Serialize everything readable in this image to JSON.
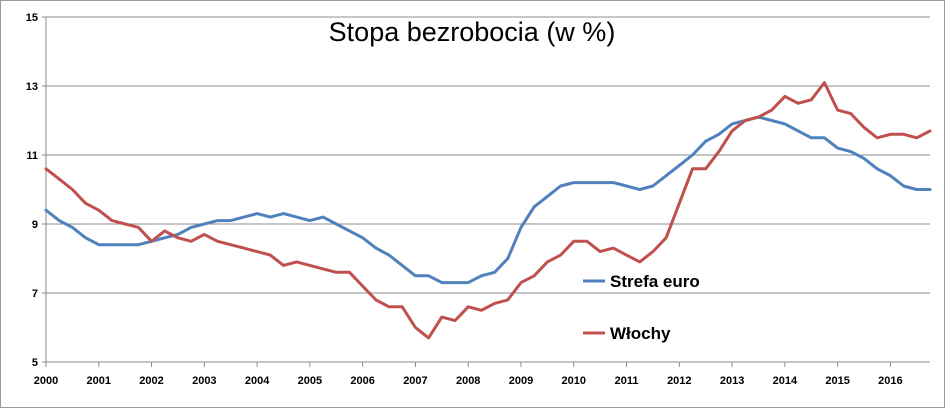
{
  "chart_data": {
    "type": "line",
    "title": "Stopa bezrobocia (w %)",
    "xlabel": "",
    "ylabel": "",
    "xlim": [
      2000,
      2016.75
    ],
    "ylim": [
      5,
      15
    ],
    "yticks": [
      5,
      7,
      9,
      11,
      13,
      15
    ],
    "xticks": [
      "2000",
      "2001",
      "2002",
      "2003",
      "2004",
      "2005",
      "2006",
      "2007",
      "2008",
      "2009",
      "2010",
      "2011",
      "2012",
      "2013",
      "2014",
      "2015",
      "2016"
    ],
    "grid": true,
    "legend_placement": "right-lower",
    "series": [
      {
        "name": "Strefa euro",
        "color": "#4F81BD",
        "x": [
          2000,
          2000.25,
          2000.5,
          2000.75,
          2001,
          2001.25,
          2001.5,
          2001.75,
          2002,
          2002.25,
          2002.5,
          2002.75,
          2003,
          2003.25,
          2003.5,
          2003.75,
          2004,
          2004.25,
          2004.5,
          2004.75,
          2005,
          2005.25,
          2005.5,
          2005.75,
          2006,
          2006.25,
          2006.5,
          2006.75,
          2007,
          2007.25,
          2007.5,
          2007.75,
          2008,
          2008.25,
          2008.5,
          2008.75,
          2009,
          2009.25,
          2009.5,
          2009.75,
          2010,
          2010.25,
          2010.5,
          2010.75,
          2011,
          2011.25,
          2011.5,
          2011.75,
          2012,
          2012.25,
          2012.5,
          2012.75,
          2013,
          2013.25,
          2013.5,
          2013.75,
          2014,
          2014.25,
          2014.5,
          2014.75,
          2015,
          2015.25,
          2015.5,
          2015.75,
          2016,
          2016.25,
          2016.5,
          2016.75
        ],
        "y": [
          9.4,
          9.1,
          8.9,
          8.6,
          8.4,
          8.4,
          8.4,
          8.4,
          8.5,
          8.6,
          8.7,
          8.9,
          9.0,
          9.1,
          9.1,
          9.2,
          9.3,
          9.2,
          9.3,
          9.2,
          9.1,
          9.2,
          9.0,
          8.8,
          8.6,
          8.3,
          8.1,
          7.8,
          7.5,
          7.5,
          7.3,
          7.3,
          7.3,
          7.5,
          7.6,
          8.0,
          8.9,
          9.5,
          9.8,
          10.1,
          10.2,
          10.2,
          10.2,
          10.2,
          10.1,
          10.0,
          10.1,
          10.4,
          10.7,
          11.0,
          11.4,
          11.6,
          11.9,
          12.0,
          12.1,
          12.0,
          11.9,
          11.7,
          11.5,
          11.5,
          11.2,
          11.1,
          10.9,
          10.6,
          10.4,
          10.1,
          10.0,
          10.0
        ]
      },
      {
        "name": "Włochy",
        "color": "#C0504D",
        "x": [
          2000,
          2000.25,
          2000.5,
          2000.75,
          2001,
          2001.25,
          2001.5,
          2001.75,
          2002,
          2002.25,
          2002.5,
          2002.75,
          2003,
          2003.25,
          2003.5,
          2003.75,
          2004,
          2004.25,
          2004.5,
          2004.75,
          2005,
          2005.25,
          2005.5,
          2005.75,
          2006,
          2006.25,
          2006.5,
          2006.75,
          2007,
          2007.25,
          2007.5,
          2007.75,
          2008,
          2008.25,
          2008.5,
          2008.75,
          2009,
          2009.25,
          2009.5,
          2009.75,
          2010,
          2010.25,
          2010.5,
          2010.75,
          2011,
          2011.25,
          2011.5,
          2011.75,
          2012,
          2012.25,
          2012.5,
          2012.75,
          2013,
          2013.25,
          2013.5,
          2013.75,
          2014,
          2014.25,
          2014.5,
          2014.75,
          2015,
          2015.25,
          2015.5,
          2015.75,
          2016,
          2016.25,
          2016.5,
          2016.75
        ],
        "y": [
          10.6,
          10.3,
          10.0,
          9.6,
          9.4,
          9.1,
          9.0,
          8.9,
          8.5,
          8.8,
          8.6,
          8.5,
          8.7,
          8.5,
          8.4,
          8.3,
          8.2,
          8.1,
          7.8,
          7.9,
          7.8,
          7.7,
          7.6,
          7.6,
          7.2,
          6.8,
          6.6,
          6.6,
          6.0,
          5.7,
          6.3,
          6.2,
          6.6,
          6.5,
          6.7,
          6.8,
          7.3,
          7.5,
          7.9,
          8.1,
          8.5,
          8.5,
          8.2,
          8.3,
          8.1,
          7.9,
          8.2,
          8.6,
          9.6,
          10.6,
          10.6,
          11.1,
          11.7,
          12.0,
          12.1,
          12.3,
          12.7,
          12.5,
          12.6,
          13.1,
          12.3,
          12.2,
          11.8,
          11.5,
          11.6,
          11.6,
          11.5,
          11.7
        ]
      }
    ]
  }
}
